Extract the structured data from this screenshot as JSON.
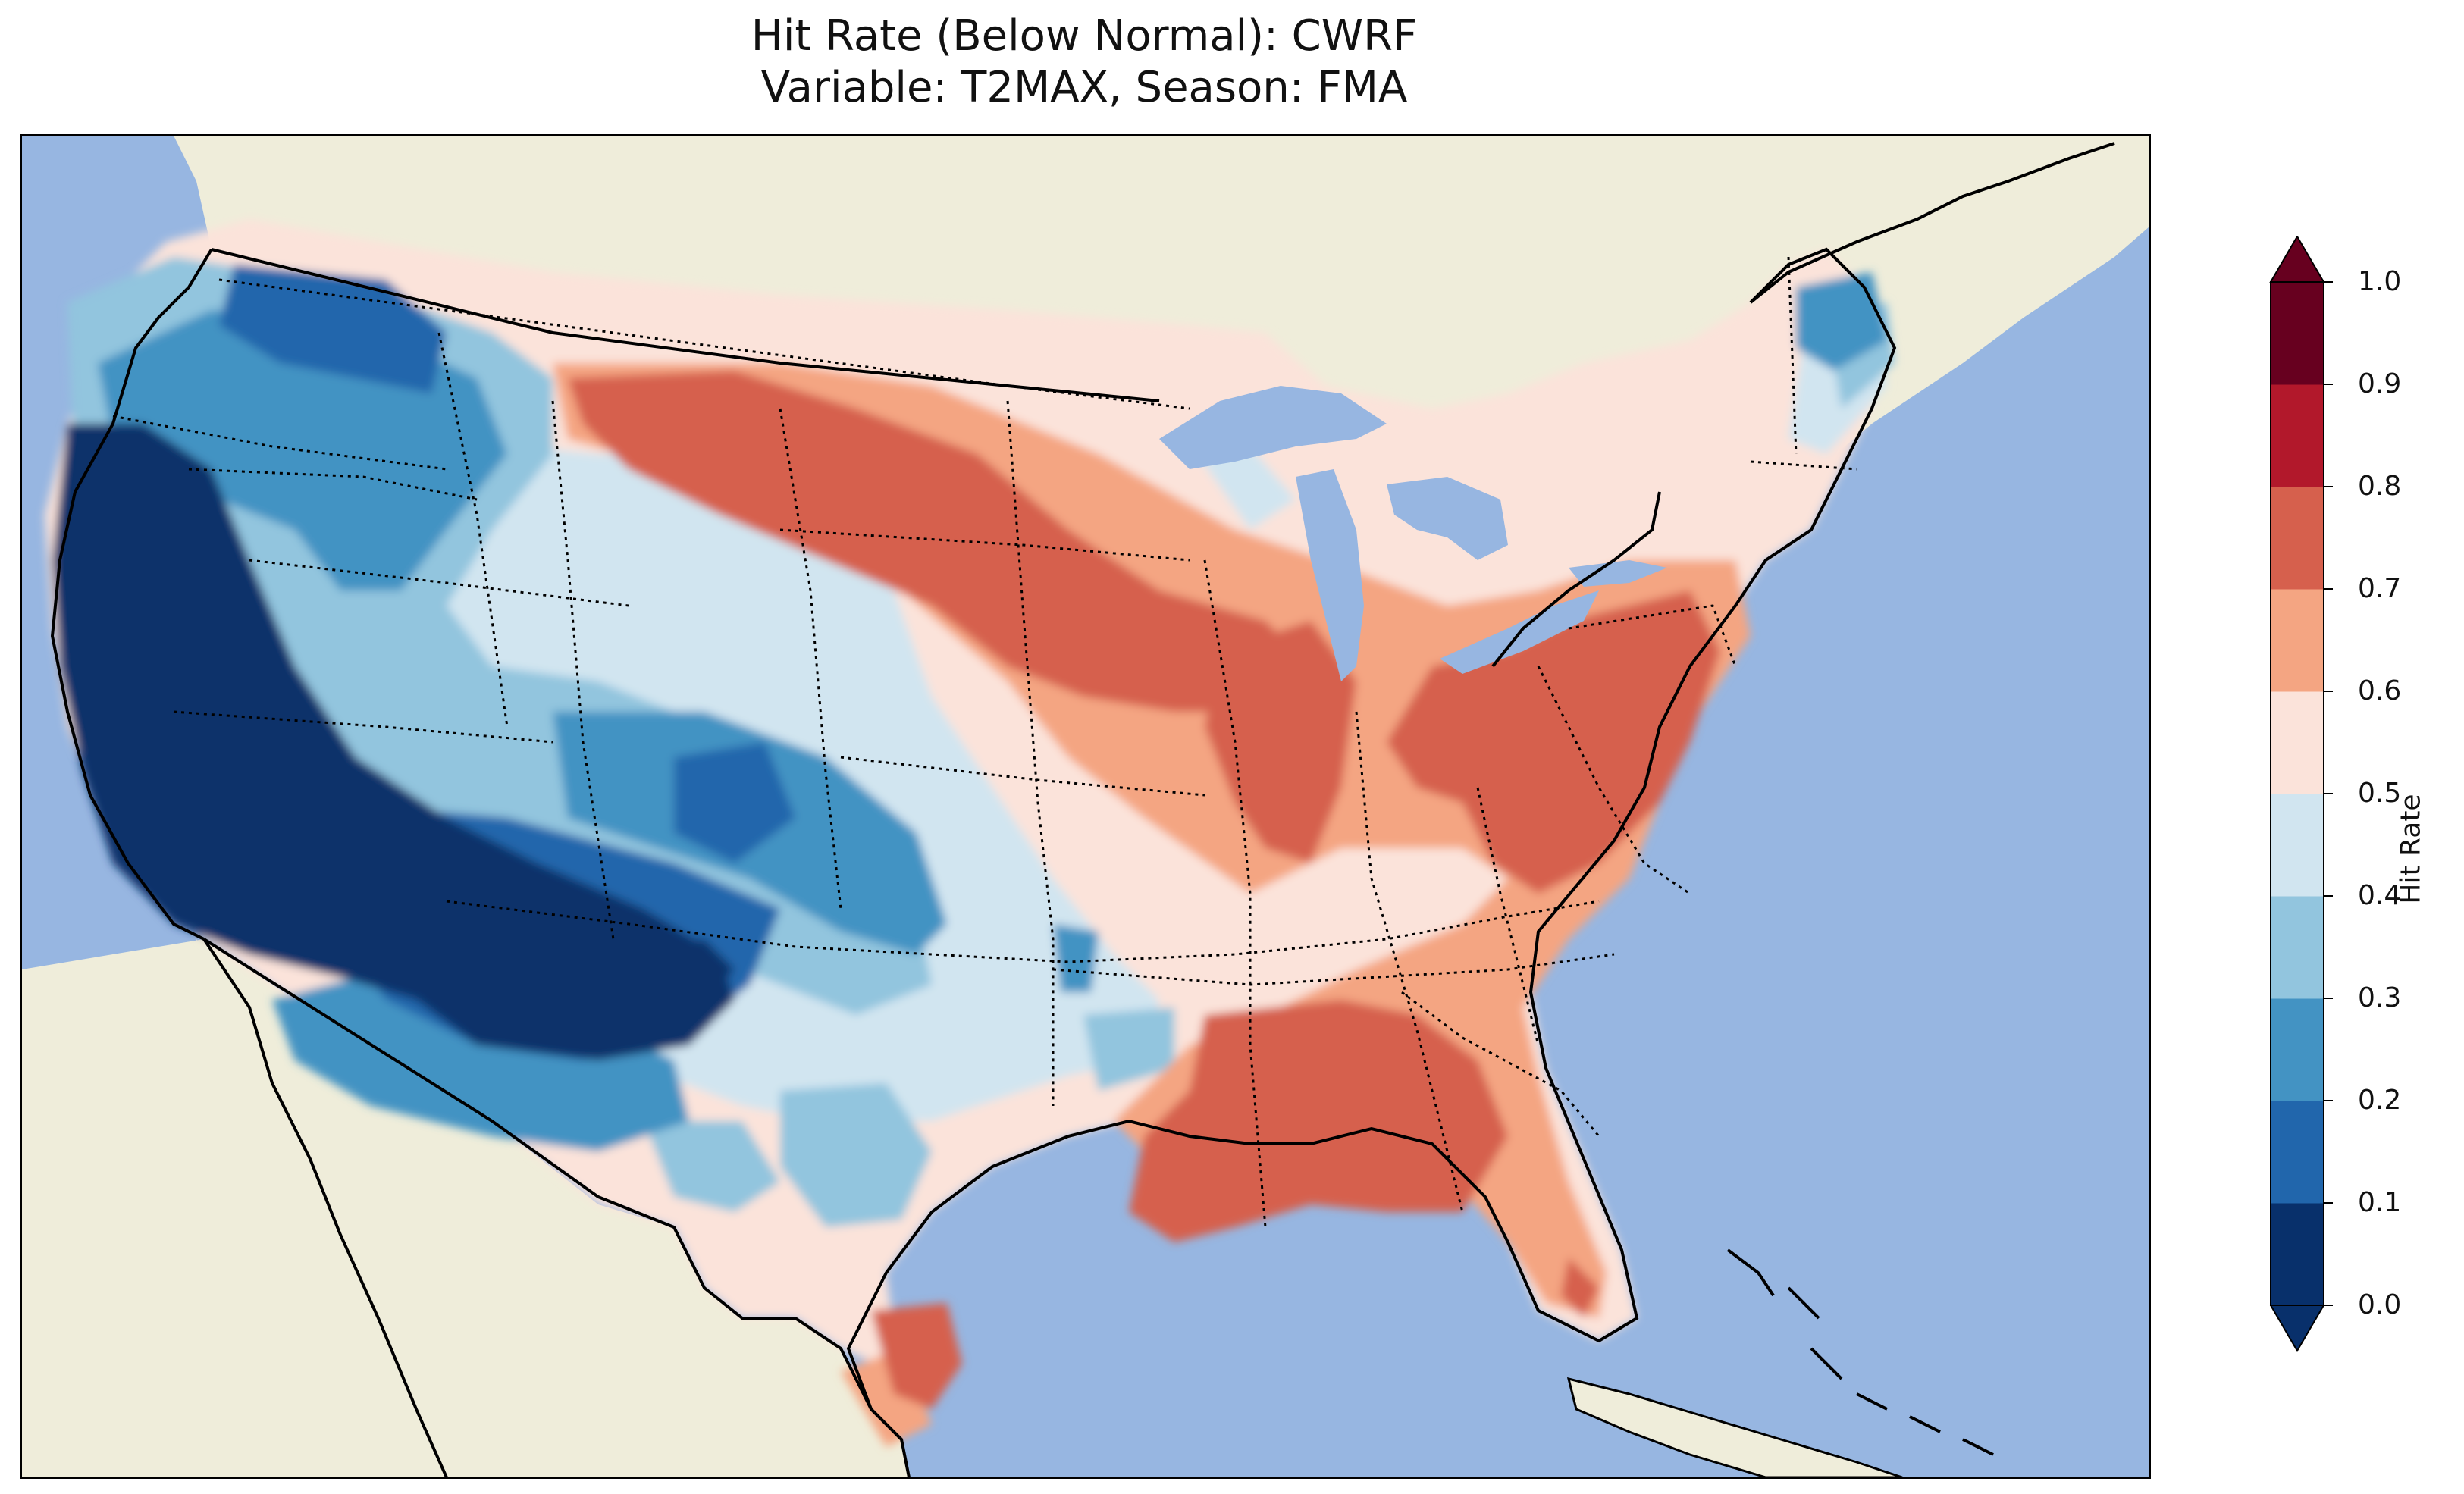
{
  "title_line1": "Hit Rate (Below Normal): CWRF",
  "title_line2": "Variable: T2MAX, Season: FMA",
  "colorbar": {
    "label": "Hit Rate",
    "ticks": [
      "0.0",
      "0.1",
      "0.2",
      "0.3",
      "0.4",
      "0.5",
      "0.6",
      "0.7",
      "0.8",
      "0.9",
      "1.0"
    ],
    "colors": [
      "#08306b",
      "#2166ac",
      "#4393c3",
      "#92c5de",
      "#d1e5f0",
      "#fbe3da",
      "#f4a582",
      "#d6604d",
      "#b2182b",
      "#67001f"
    ],
    "extend": "both"
  },
  "map": {
    "ocean_color": "#97b6e1",
    "land_color": "#efedda",
    "region": "Contiguous United States",
    "regions": [
      {
        "name": "Pacific coast (California)",
        "hit_rate_range": [
          0.0,
          0.1
        ]
      },
      {
        "name": "Southwest desert band",
        "hit_rate_range": [
          0.0,
          0.2
        ]
      },
      {
        "name": "Pacific Northwest / Northern Rockies",
        "hit_rate_range": [
          0.2,
          0.5
        ]
      },
      {
        "name": "Central Rockies",
        "hit_rate_range": [
          0.1,
          0.4
        ]
      },
      {
        "name": "Northern Plains",
        "hit_rate_range": [
          0.6,
          0.8
        ]
      },
      {
        "name": "Midwest / Ohio Valley / Appalachia",
        "hit_rate_range": [
          0.6,
          0.8
        ]
      },
      {
        "name": "Central & Southern Plains",
        "hit_rate_range": [
          0.4,
          0.6
        ]
      },
      {
        "name": "Lower Mississippi / Gulf Coast",
        "hit_rate_range": [
          0.6,
          0.8
        ]
      },
      {
        "name": "South Texas",
        "hit_rate_range": [
          0.6,
          0.8
        ]
      },
      {
        "name": "Northern Maine",
        "hit_rate_range": [
          0.2,
          0.3
        ]
      },
      {
        "name": "Southeast Atlantic coast",
        "hit_rate_range": [
          0.4,
          0.6
        ]
      }
    ]
  }
}
